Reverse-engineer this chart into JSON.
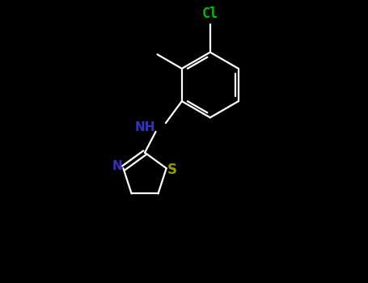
{
  "background_color": "#000000",
  "bond_color": "#ffffff",
  "bond_lw": 1.6,
  "cl_color": "#00bb00",
  "n_color": "#3333bb",
  "s_color": "#999900",
  "cl_label": "Cl",
  "nh_label": "NH",
  "n_label": "N",
  "s_label": "S",
  "cl_fontsize": 12,
  "nh_fontsize": 11,
  "n_fontsize": 11,
  "s_fontsize": 12,
  "figsize": [
    4.55,
    3.5
  ],
  "dpi": 100,
  "xlim": [
    -2.5,
    3.0
  ],
  "ylim": [
    -2.5,
    4.0
  ]
}
